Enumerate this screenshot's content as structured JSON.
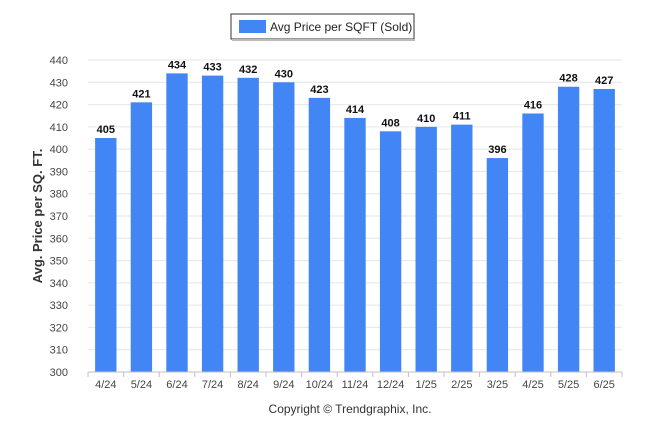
{
  "chart_data": {
    "type": "bar",
    "title": "",
    "legend": {
      "label": "Avg Price per SQFT (Sold)",
      "color": "#4285f4",
      "placement": "top-center"
    },
    "ylabel": "Avg. Price per SQ. FT.",
    "xlabel": "",
    "ylim": [
      300,
      440
    ],
    "yticks": [
      300,
      310,
      320,
      330,
      340,
      350,
      360,
      370,
      380,
      390,
      400,
      410,
      420,
      430,
      440
    ],
    "grid": true,
    "bar_color": "#4285f4",
    "categories": [
      "4/24",
      "5/24",
      "6/24",
      "7/24",
      "8/24",
      "9/24",
      "10/24",
      "11/24",
      "12/24",
      "1/25",
      "2/25",
      "3/25",
      "4/25",
      "5/25",
      "6/25"
    ],
    "values": [
      405,
      421,
      434,
      433,
      432,
      430,
      423,
      414,
      408,
      410,
      411,
      396,
      416,
      428,
      427
    ],
    "data_labels": true
  },
  "footer": {
    "copyright": "Copyright © Trendgraphix, Inc."
  }
}
